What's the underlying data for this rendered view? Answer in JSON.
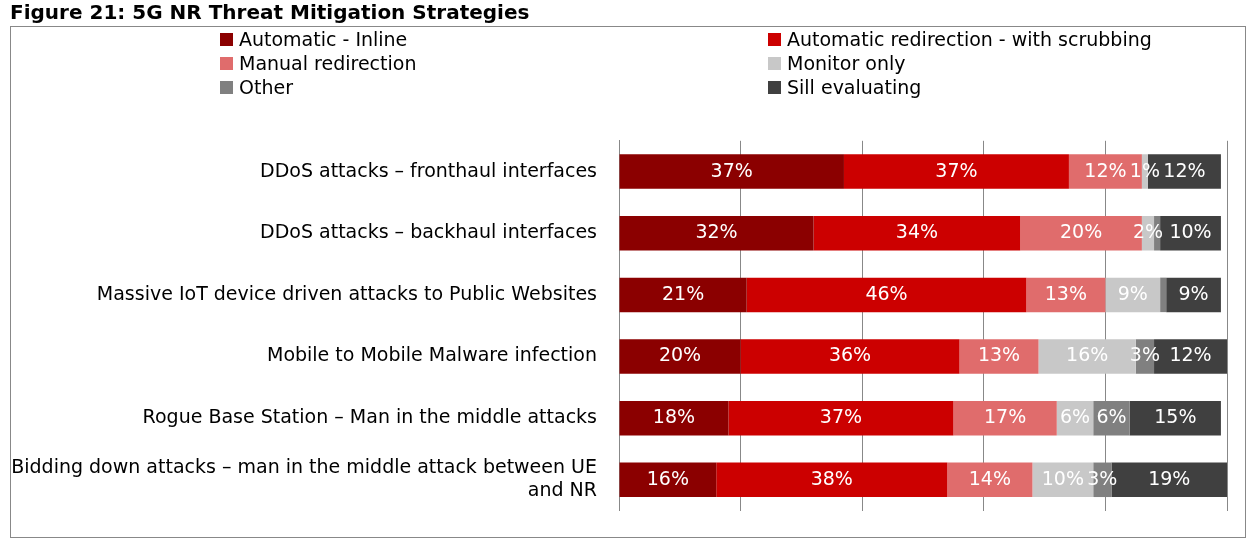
{
  "chart_data": {
    "type": "bar",
    "orientation": "horizontal",
    "stacked": true,
    "title": "Figure 21: 5G NR Threat Mitigation Strategies",
    "categories": [
      "DDoS attacks – fronthaul interfaces",
      "DDoS attacks – backhaul interfaces",
      "Massive IoT device driven attacks to Public Websites",
      "Mobile to Mobile Malware infection",
      "Rogue Base Station – Man in the middle attacks",
      "Bidding down attacks – man in the middle attack between UE and NR"
    ],
    "series": [
      {
        "name": "Automatic - Inline",
        "color": "#8b0000",
        "values": [
          37,
          32,
          21,
          20,
          18,
          16
        ],
        "value_labels": [
          "37%",
          "32%",
          "21%",
          "20%",
          "18%",
          "16%"
        ]
      },
      {
        "name": "Automatic redirection - with scrubbing",
        "color": "#cc0000",
        "values": [
          37,
          34,
          46,
          36,
          37,
          38
        ],
        "value_labels": [
          "37%",
          "34%",
          "46%",
          "36%",
          "37%",
          "38%"
        ]
      },
      {
        "name": "Manual redirection",
        "color": "#e06c6c",
        "values": [
          12,
          20,
          13,
          13,
          17,
          14
        ],
        "value_labels": [
          "12%",
          "20%",
          "13%",
          "13%",
          "17%",
          "14%"
        ]
      },
      {
        "name": "Monitor only",
        "color": "#c8c8c8",
        "values": [
          1,
          2,
          9,
          16,
          6,
          10
        ],
        "value_labels": [
          "1%",
          "2%",
          "9%",
          "16%",
          "6%",
          "10%"
        ]
      },
      {
        "name": "Other",
        "color": "#808080",
        "values": [
          null,
          1,
          1,
          3,
          6,
          3
        ],
        "value_labels": [
          null,
          null,
          null,
          "3%",
          "6%",
          "3%"
        ]
      },
      {
        "name": "Sill evaluating",
        "color": "#404040",
        "values": [
          12,
          10,
          9,
          12,
          15,
          19
        ],
        "value_labels": [
          "12%",
          "10%",
          "9%",
          "12%",
          "15%",
          "19%"
        ]
      }
    ],
    "xlim": [
      0,
      100
    ],
    "xticks": [
      {
        "value": 0,
        "label": null
      },
      {
        "value": 20,
        "label": null
      },
      {
        "value": 40,
        "label": null
      },
      {
        "value": 60,
        "label": null
      },
      {
        "value": 80,
        "label": null
      },
      {
        "value": 100,
        "label": null
      }
    ],
    "tick_labels": "y",
    "grid": "x",
    "legend": "top"
  }
}
